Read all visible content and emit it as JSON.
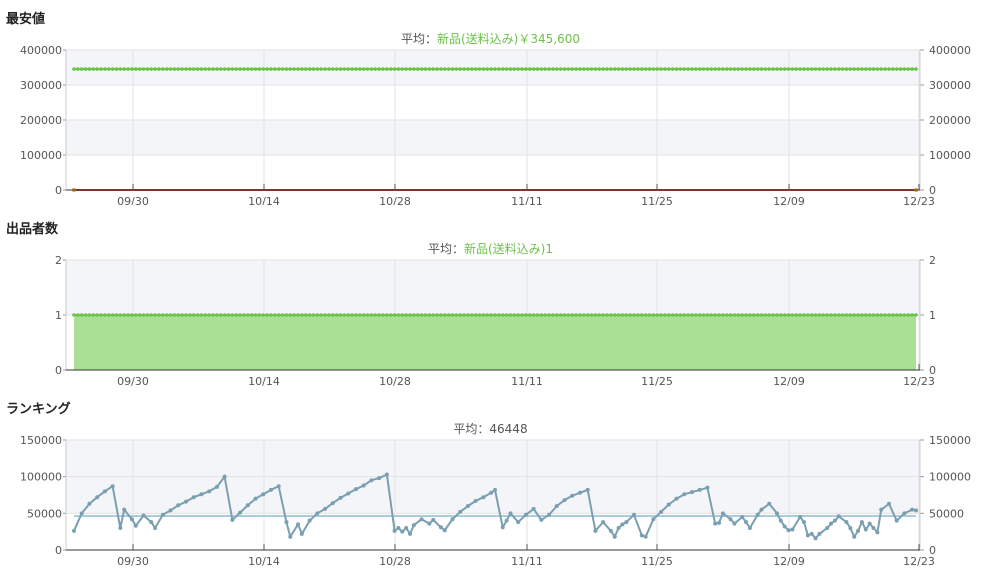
{
  "chart_data": [
    {
      "type": "line",
      "title": "最安値",
      "avg_label": "平均：",
      "avg_value": "新品(送料込み)￥345,600",
      "x_ticks": [
        "09/30",
        "10/14",
        "10/28",
        "11/11",
        "11/25",
        "12/09",
        "12/23"
      ],
      "ylim": [
        0,
        400000
      ],
      "y_ticks": [
        "0",
        "100000",
        "200000",
        "300000",
        "400000"
      ],
      "grid": true,
      "series": [
        {
          "name": "新品(送料込み)",
          "color": "#6cc24a",
          "style": "line-dots",
          "value": 345600
        },
        {
          "color": "#c0392b",
          "style": "line",
          "value": 0
        }
      ]
    },
    {
      "type": "area",
      "title": "出品者数",
      "avg_label": "平均：",
      "avg_value": "新品(送料込み)1",
      "x_ticks": [
        "09/30",
        "10/14",
        "10/28",
        "11/11",
        "11/25",
        "12/09",
        "12/23"
      ],
      "ylim": [
        0,
        2
      ],
      "y_ticks": [
        "0",
        "1",
        "2"
      ],
      "grid": true,
      "series": [
        {
          "name": "新品(送料込み)",
          "color": "#6cc24a",
          "fill": "#a9e096",
          "value": 1
        }
      ]
    },
    {
      "type": "line",
      "title": "ランキング",
      "avg_label": "平均：",
      "avg_value": "46448",
      "x_ticks": [
        "09/30",
        "10/14",
        "10/28",
        "11/11",
        "11/25",
        "12/09",
        "12/23"
      ],
      "ylim": [
        0,
        150000
      ],
      "y_ticks": [
        "0",
        "50000",
        "100000",
        "150000"
      ],
      "grid": true,
      "average": 46448,
      "series": [
        {
          "color": "#7a9fb1",
          "avg_color": "#a8cbe0",
          "points": [
            [
              0,
              26000
            ],
            [
              2,
              50000
            ],
            [
              4,
              63000
            ],
            [
              6,
              72000
            ],
            [
              8,
              80000
            ],
            [
              10,
              87000
            ],
            [
              12,
              30000
            ],
            [
              13,
              55000
            ],
            [
              15,
              42000
            ],
            [
              16,
              33000
            ],
            [
              18,
              47000
            ],
            [
              20,
              38000
            ],
            [
              21,
              30000
            ],
            [
              23,
              48000
            ],
            [
              25,
              54000
            ],
            [
              27,
              61000
            ],
            [
              29,
              66000
            ],
            [
              31,
              72000
            ],
            [
              33,
              76000
            ],
            [
              35,
              80000
            ],
            [
              37,
              86000
            ],
            [
              39,
              100000
            ],
            [
              41,
              41000
            ],
            [
              43,
              51000
            ],
            [
              45,
              61000
            ],
            [
              47,
              70000
            ],
            [
              49,
              76000
            ],
            [
              51,
              82000
            ],
            [
              53,
              87000
            ],
            [
              55,
              38000
            ],
            [
              56,
              18000
            ],
            [
              58,
              35000
            ],
            [
              59,
              22000
            ],
            [
              61,
              40000
            ],
            [
              63,
              50000
            ],
            [
              65,
              56000
            ],
            [
              67,
              64000
            ],
            [
              69,
              71000
            ],
            [
              71,
              77000
            ],
            [
              73,
              83000
            ],
            [
              75,
              88000
            ],
            [
              77,
              95000
            ],
            [
              79,
              98000
            ],
            [
              81,
              103000
            ],
            [
              83,
              26000
            ],
            [
              84,
              30000
            ],
            [
              85,
              25000
            ],
            [
              86,
              30000
            ],
            [
              87,
              22000
            ],
            [
              88,
              34000
            ],
            [
              90,
              42000
            ],
            [
              92,
              36000
            ],
            [
              93,
              41000
            ],
            [
              95,
              31000
            ],
            [
              96,
              27000
            ],
            [
              98,
              42000
            ],
            [
              100,
              52000
            ],
            [
              102,
              60000
            ],
            [
              104,
              67000
            ],
            [
              106,
              72000
            ],
            [
              108,
              78000
            ],
            [
              109,
              82000
            ],
            [
              111,
              31000
            ],
            [
              112,
              40000
            ],
            [
              113,
              50000
            ],
            [
              115,
              38000
            ],
            [
              117,
              48000
            ],
            [
              119,
              56000
            ],
            [
              121,
              41000
            ],
            [
              123,
              48000
            ],
            [
              125,
              60000
            ],
            [
              127,
              68000
            ],
            [
              129,
              74000
            ],
            [
              131,
              78000
            ],
            [
              133,
              82000
            ],
            [
              135,
              26000
            ],
            [
              137,
              38000
            ],
            [
              139,
              26000
            ],
            [
              140,
              18000
            ],
            [
              141,
              30000
            ],
            [
              142,
              35000
            ],
            [
              143,
              38000
            ],
            [
              145,
              48000
            ],
            [
              147,
              20000
            ],
            [
              148,
              18000
            ],
            [
              150,
              42000
            ],
            [
              152,
              52000
            ],
            [
              154,
              62000
            ],
            [
              156,
              70000
            ],
            [
              158,
              76000
            ],
            [
              160,
              79000
            ],
            [
              162,
              82000
            ],
            [
              164,
              85000
            ],
            [
              166,
              36000
            ],
            [
              167,
              37000
            ],
            [
              168,
              50000
            ],
            [
              170,
              42000
            ],
            [
              171,
              36000
            ],
            [
              173,
              45000
            ],
            [
              174,
              38000
            ],
            [
              175,
              30000
            ],
            [
              177,
              48000
            ],
            [
              178,
              55000
            ],
            [
              180,
              63000
            ],
            [
              182,
              50000
            ],
            [
              183,
              40000
            ],
            [
              184,
              32000
            ],
            [
              185,
              27000
            ],
            [
              186,
              28000
            ],
            [
              188,
              45000
            ],
            [
              189,
              38000
            ],
            [
              190,
              20000
            ],
            [
              191,
              22000
            ],
            [
              192,
              16000
            ],
            [
              193,
              22000
            ],
            [
              195,
              30000
            ],
            [
              196,
              36000
            ],
            [
              197,
              40000
            ],
            [
              198,
              46000
            ],
            [
              200,
              38000
            ],
            [
              201,
              30000
            ],
            [
              202,
              18000
            ],
            [
              203,
              26000
            ],
            [
              204,
              38000
            ],
            [
              205,
              28000
            ],
            [
              206,
              36000
            ],
            [
              207,
              30000
            ],
            [
              208,
              24000
            ],
            [
              209,
              55000
            ],
            [
              211,
              63000
            ],
            [
              213,
              40000
            ],
            [
              215,
              50000
            ],
            [
              217,
              55000
            ],
            [
              218,
              54000
            ]
          ]
        }
      ]
    }
  ]
}
